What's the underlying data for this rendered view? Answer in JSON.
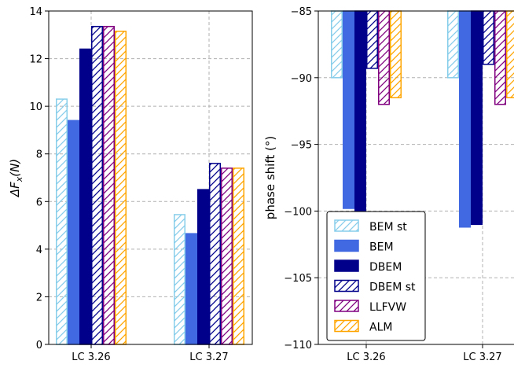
{
  "chart_data": [
    {
      "type": "bar",
      "categories": [
        "LC 3.26",
        "LC 3.27"
      ],
      "ylabel": "ΔF_x(N)",
      "ylim": [
        0,
        14
      ],
      "yticks": [
        0,
        2,
        4,
        6,
        8,
        10,
        12,
        14
      ],
      "grid": true,
      "series": [
        {
          "name": "BEM st",
          "values": [
            10.3,
            5.45
          ]
        },
        {
          "name": "BEM",
          "values": [
            9.4,
            4.65
          ]
        },
        {
          "name": "DBEM",
          "values": [
            12.4,
            6.5
          ]
        },
        {
          "name": "DBEM st",
          "values": [
            13.35,
            7.6
          ]
        },
        {
          "name": "LLFVW",
          "values": [
            13.35,
            7.4
          ]
        },
        {
          "name": "ALM",
          "values": [
            13.15,
            7.4
          ]
        }
      ]
    },
    {
      "type": "bar",
      "categories": [
        "LC 3.26",
        "LC 3.27"
      ],
      "ylabel": "phase shift (°)",
      "ylim": [
        -110,
        -85
      ],
      "yticks": [
        -110,
        -105,
        -100,
        -95,
        -90,
        -85
      ],
      "grid": true,
      "legend_position": "lower-left",
      "series": [
        {
          "name": "BEM st",
          "values": [
            -90.0,
            -90.0
          ]
        },
        {
          "name": "BEM",
          "values": [
            -99.8,
            -101.2
          ]
        },
        {
          "name": "DBEM",
          "values": [
            -100.3,
            -101.0
          ]
        },
        {
          "name": "DBEM st",
          "values": [
            -89.3,
            -89.0
          ]
        },
        {
          "name": "LLFVW",
          "values": [
            -92.0,
            -92.0
          ]
        },
        {
          "name": "ALM",
          "values": [
            -91.5,
            -91.5
          ]
        }
      ]
    }
  ],
  "series_styles": [
    {
      "edge": "#87ceeb",
      "fill": "none",
      "hatch": true
    },
    {
      "edge": "#4169e1",
      "fill": "#4169e1",
      "hatch": false
    },
    {
      "edge": "#00008b",
      "fill": "#00008b",
      "hatch": false
    },
    {
      "edge": "#00008b",
      "fill": "none",
      "hatch": true
    },
    {
      "edge": "#800080",
      "fill": "none",
      "hatch": true
    },
    {
      "edge": "#ffa500",
      "fill": "none",
      "hatch": true
    }
  ]
}
